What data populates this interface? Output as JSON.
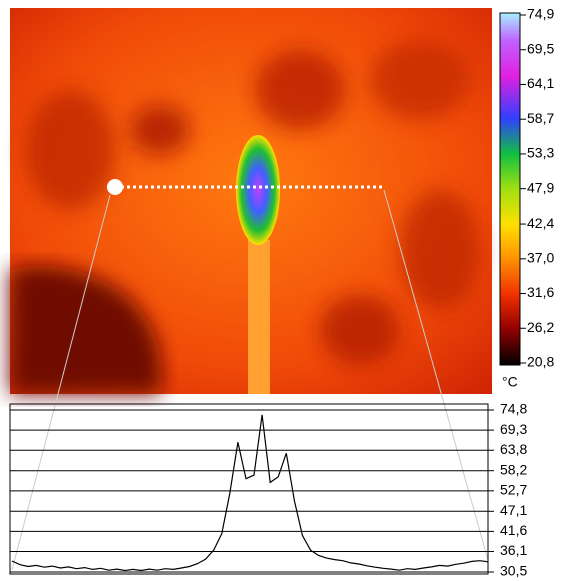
{
  "chart_data": [
    {
      "type": "colorbar",
      "unit": "°C",
      "ylim": [
        20.8,
        74.9
      ],
      "yticks": [
        {
          "value": 74.9,
          "label": "74,9"
        },
        {
          "value": 69.5,
          "label": "69,5"
        },
        {
          "value": 64.1,
          "label": "64,1"
        },
        {
          "value": 58.7,
          "label": "58,7"
        },
        {
          "value": 53.3,
          "label": "53,3"
        },
        {
          "value": 47.9,
          "label": "47,9"
        },
        {
          "value": 42.4,
          "label": "42,4"
        },
        {
          "value": 37.0,
          "label": "37,0"
        },
        {
          "value": 31.6,
          "label": "31,6"
        },
        {
          "value": 26.2,
          "label": "26,2"
        },
        {
          "value": 20.8,
          "label": "20,8"
        }
      ]
    },
    {
      "type": "line",
      "color": "#000000",
      "grid": true,
      "ylim": [
        30.5,
        74.8
      ],
      "yticks": [
        {
          "value": 74.8,
          "label": "74,8"
        },
        {
          "value": 69.3,
          "label": "69,3"
        },
        {
          "value": 63.8,
          "label": "63,8"
        },
        {
          "value": 58.2,
          "label": "58,2"
        },
        {
          "value": 52.7,
          "label": "52,7"
        },
        {
          "value": 47.1,
          "label": "47,1"
        },
        {
          "value": 41.6,
          "label": "41,6"
        },
        {
          "value": 36.1,
          "label": "36,1"
        },
        {
          "value": 30.5,
          "label": "30,5"
        }
      ],
      "values": [
        33.5,
        32.5,
        32.0,
        32.3,
        31.8,
        32.1,
        31.6,
        31.9,
        31.4,
        31.7,
        31.2,
        31.5,
        31.0,
        31.3,
        30.9,
        31.2,
        30.9,
        31.3,
        31.0,
        31.4,
        31.2,
        31.6,
        32.0,
        32.8,
        34.0,
        36.5,
        41.0,
        52.0,
        66.0,
        56.0,
        57.0,
        73.5,
        55.0,
        56.5,
        63.0,
        50.0,
        40.5,
        36.5,
        35.0,
        34.3,
        33.9,
        33.6,
        33.0,
        32.7,
        32.2,
        31.8,
        31.5,
        31.3,
        31.0,
        31.4,
        31.2,
        31.6,
        31.9,
        32.3,
        32.1,
        32.6,
        32.9,
        33.4,
        33.6,
        33.3
      ]
    }
  ]
}
